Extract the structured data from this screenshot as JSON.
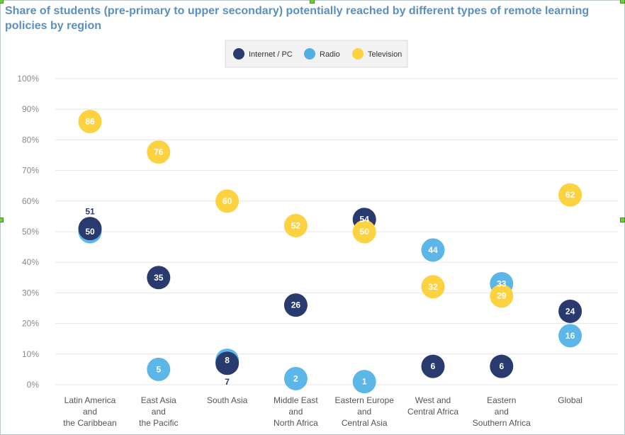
{
  "chart_data": {
    "type": "scatter",
    "title": "Share of students (pre-primary to upper secondary) potentially reached by different types of remote learning policies by region",
    "xlabel": "",
    "ylabel": "",
    "ylim": [
      0,
      100
    ],
    "yticks": [
      "0%",
      "10%",
      "20%",
      "30%",
      "40%",
      "50%",
      "60%",
      "70%",
      "80%",
      "90%",
      "100%"
    ],
    "legend_position": "top-center",
    "categories": [
      [
        "Latin America",
        "and",
        "the Caribbean"
      ],
      [
        "East Asia",
        "and",
        "the Pacific"
      ],
      [
        "South Asia"
      ],
      [
        "Middle East",
        "and",
        "North Africa"
      ],
      [
        "Eastern Europe",
        "and",
        "Central Asia"
      ],
      [
        "West and",
        "Central Africa"
      ],
      [
        "Eastern",
        "and",
        "Southern Africa"
      ],
      [
        "Global"
      ]
    ],
    "series": [
      {
        "name": "Internet / PC",
        "color": "#283a6e",
        "values": [
          51,
          35,
          7,
          26,
          54,
          6,
          6,
          24
        ]
      },
      {
        "name": "Radio",
        "color": "#4fb0e6",
        "values": [
          50,
          5,
          8,
          2,
          1,
          44,
          33,
          16
        ]
      },
      {
        "name": "Television",
        "color": "#fdd241",
        "values": [
          86,
          76,
          60,
          52,
          50,
          32,
          29,
          62
        ]
      }
    ]
  }
}
